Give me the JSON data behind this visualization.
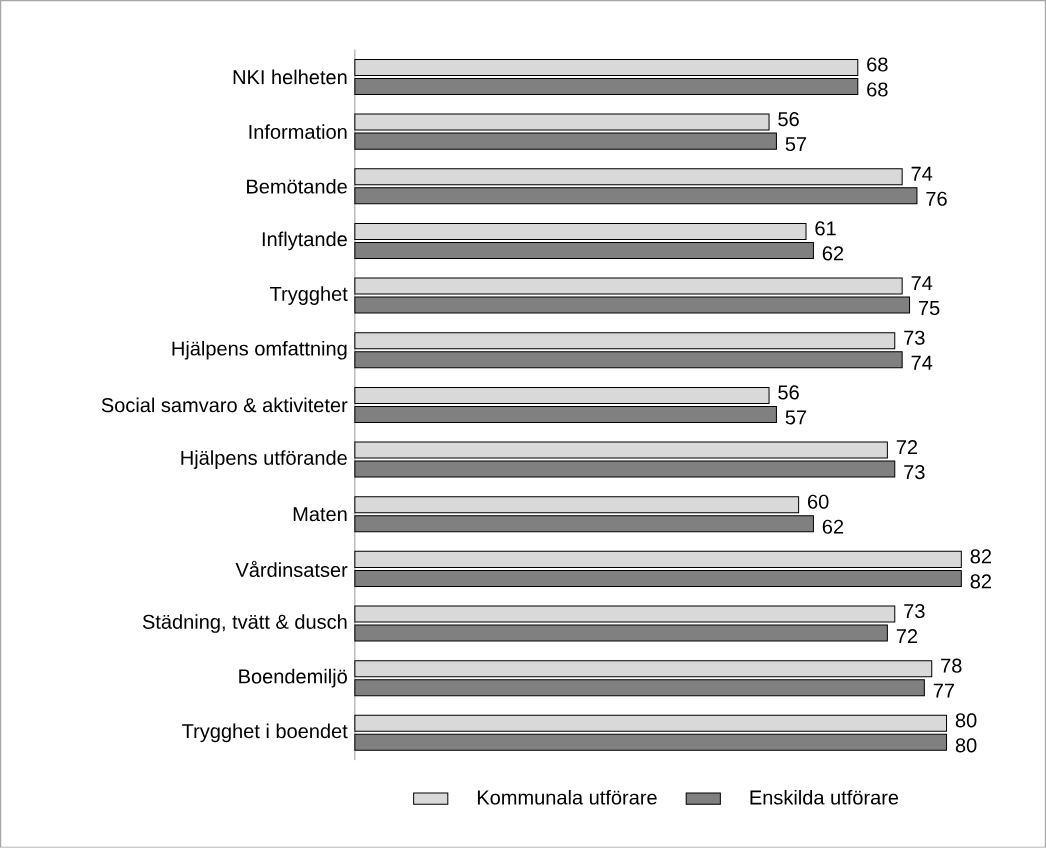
{
  "chart_data": {
    "type": "bar",
    "orientation": "horizontal",
    "categories": [
      "NKI helheten",
      "Information",
      "Bemötande",
      "Inflytande",
      "Trygghet",
      "Hjälpens omfattning",
      "Social samvaro & aktiviteter",
      "Hjälpens utförande",
      "Maten",
      "Vårdinsatser",
      "Städning, tvätt & dusch",
      "Boendemiljö",
      "Trygghet i boendet"
    ],
    "series": [
      {
        "name": "Kommunala utförare",
        "color": "#d9d9d9",
        "values": [
          68,
          56,
          74,
          61,
          74,
          73,
          56,
          72,
          60,
          82,
          73,
          78,
          80
        ]
      },
      {
        "name": "Enskilda utförare",
        "color": "#808080",
        "values": [
          68,
          57,
          76,
          62,
          75,
          74,
          57,
          73,
          62,
          82,
          72,
          77,
          80
        ]
      }
    ],
    "data_labels": true,
    "legend": "bottom",
    "tick_labels": "y"
  }
}
